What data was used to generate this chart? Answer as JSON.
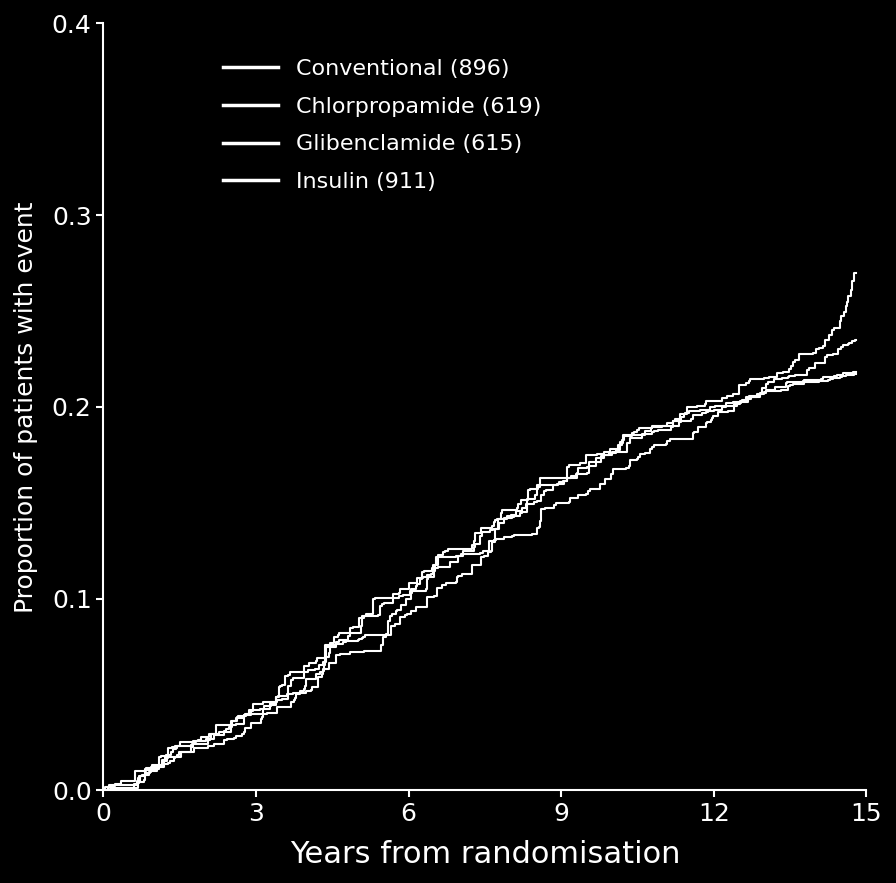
{
  "background_color": "#000000",
  "text_color": "#ffffff",
  "line_color": "#ffffff",
  "xlabel": "Years from randomisation",
  "ylabel": "Proportion of patients with event",
  "xlim": [
    0,
    15
  ],
  "ylim": [
    0,
    0.4
  ],
  "xticks": [
    0,
    3,
    6,
    9,
    12,
    15
  ],
  "yticks": [
    0.0,
    0.1,
    0.2,
    0.3,
    0.4
  ],
  "legend_labels": [
    "Conventional (896)",
    "Chlorpropamide (619)",
    "Glibenclamide (615)",
    "Insulin (911)"
  ],
  "linewidth": 1.5,
  "xlabel_fontsize": 22,
  "ylabel_fontsize": 18,
  "tick_fontsize": 18,
  "legend_fontsize": 16
}
